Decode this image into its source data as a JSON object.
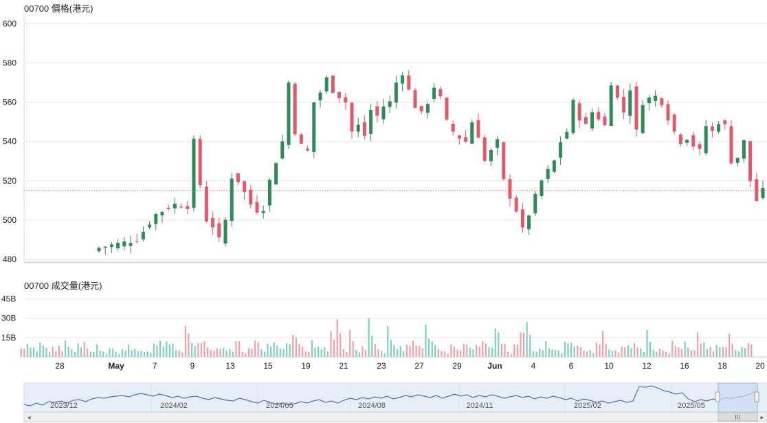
{
  "price_panel": {
    "title": "00700 價格(港元)"
  },
  "volume_panel": {
    "title": "00700 成交量(港元)"
  },
  "colors": {
    "up": "#2e8b57",
    "down": "#e05a6a",
    "volume_up": "#7fd0c0",
    "volume_down": "#f2a0a8",
    "grid": "#e6e6e6",
    "last_price_line": "#d9534f",
    "navigator_line": "#4a73b5",
    "navigator_fill": "#e8eef7",
    "navigator_selection": "#c9daf3"
  },
  "chart_data": [
    {
      "type": "candlestick",
      "title": "00700 價格(港元)",
      "yticks": [
        480,
        500,
        520,
        540,
        560,
        580,
        600
      ],
      "ylim": [
        479,
        605
      ],
      "last_price": 515,
      "xticks": [
        {
          "label": "28",
          "bold": false
        },
        {
          "label": "May",
          "bold": true
        },
        {
          "label": "7",
          "bold": false
        },
        {
          "label": "9",
          "bold": false
        },
        {
          "label": "13",
          "bold": false
        },
        {
          "label": "15",
          "bold": false
        },
        {
          "label": "19",
          "bold": false
        },
        {
          "label": "21",
          "bold": false
        },
        {
          "label": "23",
          "bold": false
        },
        {
          "label": "27",
          "bold": false
        },
        {
          "label": "29",
          "bold": false
        },
        {
          "label": "Jun",
          "bold": true
        },
        {
          "label": "4",
          "bold": false
        },
        {
          "label": "6",
          "bold": false
        },
        {
          "label": "10",
          "bold": false
        },
        {
          "label": "12",
          "bold": false
        },
        {
          "label": "16",
          "bold": false
        },
        {
          "label": "18",
          "bold": false
        },
        {
          "label": "20",
          "bold": false
        }
      ],
      "close_path": [
        [
          0,
          486
        ],
        [
          3,
          488
        ],
        [
          6,
          490
        ],
        [
          9,
          503
        ],
        [
          12,
          508
        ],
        [
          14,
          507
        ],
        [
          15,
          540
        ],
        [
          16,
          518
        ],
        [
          17,
          500
        ],
        [
          18,
          497
        ],
        [
          19,
          490
        ],
        [
          20,
          500
        ],
        [
          21,
          522
        ],
        [
          22,
          520
        ],
        [
          23,
          514
        ],
        [
          24,
          508
        ],
        [
          25,
          505
        ],
        [
          26,
          506
        ],
        [
          27,
          520
        ],
        [
          28,
          530
        ],
        [
          29,
          540
        ],
        [
          30,
          570
        ],
        [
          31,
          545
        ],
        [
          32,
          538
        ],
        [
          33,
          535
        ],
        [
          34,
          560
        ],
        [
          35,
          565
        ],
        [
          36,
          572
        ],
        [
          37,
          566
        ],
        [
          38,
          563
        ],
        [
          39,
          560
        ],
        [
          40,
          545
        ],
        [
          41,
          548
        ],
        [
          42,
          543
        ],
        [
          43,
          556
        ],
        [
          44,
          553
        ],
        [
          45,
          558
        ],
        [
          46,
          560
        ],
        [
          47,
          570
        ],
        [
          48,
          575
        ],
        [
          49,
          566
        ],
        [
          50,
          558
        ],
        [
          51,
          554
        ],
        [
          52,
          560
        ],
        [
          53,
          568
        ],
        [
          54,
          562
        ],
        [
          55,
          550
        ],
        [
          56,
          545
        ],
        [
          57,
          542
        ],
        [
          58,
          540
        ],
        [
          59,
          550
        ],
        [
          60,
          543
        ],
        [
          61,
          530
        ],
        [
          62,
          535
        ],
        [
          63,
          540
        ],
        [
          64,
          520
        ],
        [
          65,
          512
        ],
        [
          66,
          505
        ],
        [
          67,
          495
        ],
        [
          68,
          503
        ],
        [
          69,
          512
        ],
        [
          70,
          520
        ],
        [
          71,
          525
        ],
        [
          72,
          530
        ],
        [
          73,
          540
        ],
        [
          74,
          545
        ],
        [
          75,
          560
        ],
        [
          76,
          552
        ],
        [
          77,
          548
        ],
        [
          78,
          555
        ],
        [
          79,
          552
        ],
        [
          80,
          548
        ],
        [
          81,
          570
        ],
        [
          82,
          562
        ],
        [
          83,
          555
        ],
        [
          84,
          567
        ],
        [
          85,
          545
        ],
        [
          86,
          560
        ],
        [
          87,
          562
        ],
        [
          88,
          563
        ],
        [
          89,
          560
        ],
        [
          90,
          552
        ],
        [
          91,
          545
        ],
        [
          92,
          540
        ],
        [
          93,
          542
        ],
        [
          94,
          538
        ],
        [
          95,
          535
        ],
        [
          96,
          548
        ],
        [
          97,
          545
        ],
        [
          98,
          550
        ],
        [
          99,
          548
        ],
        [
          100,
          530
        ],
        [
          101,
          532
        ],
        [
          102,
          540
        ],
        [
          103,
          520
        ],
        [
          104,
          510
        ],
        [
          105,
          515
        ]
      ]
    },
    {
      "type": "bar",
      "title": "00700 成交量(港元)",
      "yticks": [
        "15B",
        "30B",
        "45B"
      ],
      "ytick_values": [
        15,
        30,
        45
      ],
      "ylim": [
        0,
        50
      ],
      "unit": "B",
      "peaks": [
        [
          14,
          24
        ],
        [
          31,
          17
        ],
        [
          37,
          20
        ],
        [
          38,
          29
        ],
        [
          40,
          21
        ],
        [
          43,
          30
        ],
        [
          46,
          24
        ],
        [
          52,
          25
        ],
        [
          63,
          22
        ],
        [
          67,
          19
        ],
        [
          68,
          27
        ],
        [
          80,
          20
        ],
        [
          87,
          21
        ],
        [
          95,
          19
        ],
        [
          100,
          18
        ],
        [
          104,
          15
        ]
      ]
    }
  ],
  "navigator": {
    "labels": [
      "2023/12",
      "2024/02",
      "2024/05",
      "2024/08",
      "2024/11",
      "2025/02",
      "2025/05"
    ],
    "selection_handle": "III",
    "scroll_left": "◂",
    "scroll_right": "▸"
  }
}
